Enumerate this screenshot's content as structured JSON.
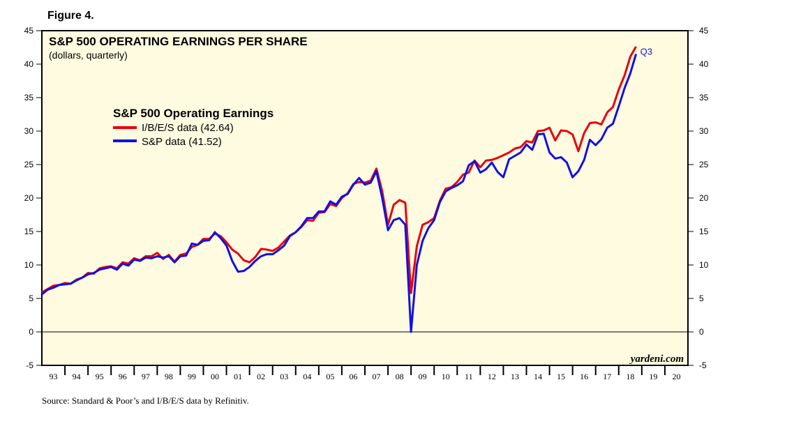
{
  "figure_label": "Figure 4.",
  "source_text": "Source: Standard & Poor’s and I/B/E/S data by Refinitiv.",
  "colors": {
    "plot_bg": "#fefbe0",
    "ibes": "#e8000d",
    "sp": "#1010e6",
    "axis": "#000000"
  },
  "chart_data": {
    "type": "line",
    "title": "S&P 500 OPERATING EARNINGS PER SHARE",
    "subtitle": "(dollars, quarterly)",
    "legend_title": "S&P 500 Operating Earnings",
    "watermark": "yardeni.com",
    "annotation": "Q3",
    "ylim": [
      -5,
      45
    ],
    "y_ticks": [
      -5,
      0,
      5,
      10,
      15,
      20,
      25,
      30,
      35,
      40,
      45
    ],
    "y_tick_labels": [
      "-5",
      "0",
      "5",
      "10",
      "15",
      "20",
      "25",
      "30",
      "35",
      "40",
      "45"
    ],
    "xlim": [
      1993,
      2021
    ],
    "x_tick_labels": [
      "93",
      "94",
      "95",
      "96",
      "97",
      "98",
      "99",
      "00",
      "01",
      "02",
      "03",
      "04",
      "05",
      "06",
      "07",
      "08",
      "09",
      "10",
      "11",
      "12",
      "13",
      "14",
      "15",
      "16",
      "17",
      "18",
      "19",
      "20"
    ],
    "series": [
      {
        "name": "I/B/E/S data (42.64)",
        "color_key": "ibes",
        "points": [
          [
            1993.0,
            5.9
          ],
          [
            1993.25,
            6.4
          ],
          [
            1993.5,
            6.9
          ],
          [
            1993.75,
            7.0
          ],
          [
            1994.0,
            7.3
          ],
          [
            1994.25,
            7.2
          ],
          [
            1994.5,
            7.8
          ],
          [
            1994.75,
            8.1
          ],
          [
            1995.0,
            8.8
          ],
          [
            1995.25,
            8.7
          ],
          [
            1995.5,
            9.5
          ],
          [
            1995.75,
            9.7
          ],
          [
            1996.0,
            9.8
          ],
          [
            1996.25,
            9.5
          ],
          [
            1996.5,
            10.4
          ],
          [
            1996.75,
            10.2
          ],
          [
            1997.0,
            11.0
          ],
          [
            1997.25,
            10.7
          ],
          [
            1997.5,
            11.3
          ],
          [
            1997.75,
            11.3
          ],
          [
            1998.0,
            11.8
          ],
          [
            1998.25,
            10.9
          ],
          [
            1998.5,
            11.5
          ],
          [
            1998.75,
            10.5
          ],
          [
            1999.0,
            11.5
          ],
          [
            1999.25,
            11.7
          ],
          [
            1999.5,
            12.7
          ],
          [
            1999.75,
            13.0
          ],
          [
            2000.0,
            13.9
          ],
          [
            2000.25,
            13.9
          ],
          [
            2000.5,
            14.7
          ],
          [
            2000.75,
            14.3
          ],
          [
            2001.0,
            13.4
          ],
          [
            2001.25,
            12.3
          ],
          [
            2001.5,
            11.7
          ],
          [
            2001.75,
            10.7
          ],
          [
            2002.0,
            10.4
          ],
          [
            2002.25,
            11.2
          ],
          [
            2002.5,
            12.4
          ],
          [
            2002.75,
            12.3
          ],
          [
            2003.0,
            12.1
          ],
          [
            2003.25,
            12.6
          ],
          [
            2003.5,
            13.5
          ],
          [
            2003.75,
            14.4
          ],
          [
            2004.0,
            14.9
          ],
          [
            2004.25,
            15.7
          ],
          [
            2004.5,
            16.7
          ],
          [
            2004.75,
            16.6
          ],
          [
            2005.0,
            17.8
          ],
          [
            2005.25,
            17.9
          ],
          [
            2005.5,
            19.1
          ],
          [
            2005.75,
            18.8
          ],
          [
            2006.0,
            20.0
          ],
          [
            2006.25,
            20.7
          ],
          [
            2006.5,
            22.1
          ],
          [
            2006.75,
            22.4
          ],
          [
            2007.0,
            22.3
          ],
          [
            2007.25,
            22.6
          ],
          [
            2007.5,
            24.4
          ],
          [
            2007.75,
            21.0
          ],
          [
            2008.0,
            16.0
          ],
          [
            2008.25,
            19.0
          ],
          [
            2008.5,
            19.7
          ],
          [
            2008.75,
            19.3
          ],
          [
            2009.0,
            5.8
          ],
          [
            2009.25,
            12.8
          ],
          [
            2009.5,
            16.0
          ],
          [
            2009.75,
            16.4
          ],
          [
            2010.0,
            17.0
          ],
          [
            2010.25,
            19.6
          ],
          [
            2010.5,
            21.4
          ],
          [
            2010.75,
            21.6
          ],
          [
            2011.0,
            22.4
          ],
          [
            2011.25,
            23.5
          ],
          [
            2011.5,
            23.8
          ],
          [
            2011.75,
            25.6
          ],
          [
            2012.0,
            24.6
          ],
          [
            2012.25,
            25.6
          ],
          [
            2012.5,
            25.7
          ],
          [
            2012.75,
            26.0
          ],
          [
            2013.0,
            26.4
          ],
          [
            2013.25,
            26.8
          ],
          [
            2013.5,
            27.4
          ],
          [
            2013.75,
            27.6
          ],
          [
            2014.0,
            28.5
          ],
          [
            2014.25,
            28.3
          ],
          [
            2014.5,
            30.0
          ],
          [
            2014.75,
            30.1
          ],
          [
            2015.0,
            30.5
          ],
          [
            2015.25,
            28.6
          ],
          [
            2015.5,
            30.1
          ],
          [
            2015.75,
            30.0
          ],
          [
            2016.0,
            29.5
          ],
          [
            2016.25,
            27.0
          ],
          [
            2016.5,
            29.7
          ],
          [
            2016.75,
            31.2
          ],
          [
            2017.0,
            31.3
          ],
          [
            2017.25,
            31.0
          ],
          [
            2017.5,
            32.8
          ],
          [
            2017.75,
            33.6
          ],
          [
            2018.0,
            36.2
          ],
          [
            2018.25,
            38.3
          ],
          [
            2018.5,
            41.1
          ],
          [
            2018.75,
            42.64
          ]
        ]
      },
      {
        "name": "S&P data (41.52)",
        "color_key": "sp",
        "points": [
          [
            1993.0,
            5.6
          ],
          [
            1993.25,
            6.3
          ],
          [
            1993.5,
            6.6
          ],
          [
            1993.75,
            7.0
          ],
          [
            1994.0,
            7.1
          ],
          [
            1994.25,
            7.2
          ],
          [
            1994.5,
            7.7
          ],
          [
            1994.75,
            8.1
          ],
          [
            1995.0,
            8.6
          ],
          [
            1995.25,
            8.8
          ],
          [
            1995.5,
            9.3
          ],
          [
            1995.75,
            9.5
          ],
          [
            1996.0,
            9.7
          ],
          [
            1996.25,
            9.3
          ],
          [
            1996.5,
            10.2
          ],
          [
            1996.75,
            9.9
          ],
          [
            1997.0,
            10.8
          ],
          [
            1997.25,
            10.6
          ],
          [
            1997.5,
            11.1
          ],
          [
            1997.75,
            11.0
          ],
          [
            1998.0,
            11.3
          ],
          [
            1998.25,
            11.1
          ],
          [
            1998.5,
            11.3
          ],
          [
            1998.75,
            10.4
          ],
          [
            1999.0,
            11.3
          ],
          [
            1999.25,
            11.4
          ],
          [
            1999.5,
            13.2
          ],
          [
            1999.75,
            13.0
          ],
          [
            2000.0,
            13.6
          ],
          [
            2000.25,
            13.7
          ],
          [
            2000.5,
            14.9
          ],
          [
            2000.75,
            14.0
          ],
          [
            2001.0,
            12.9
          ],
          [
            2001.25,
            10.6
          ],
          [
            2001.5,
            9.0
          ],
          [
            2001.75,
            9.1
          ],
          [
            2002.0,
            9.7
          ],
          [
            2002.25,
            10.6
          ],
          [
            2002.5,
            11.3
          ],
          [
            2002.75,
            11.6
          ],
          [
            2003.0,
            11.6
          ],
          [
            2003.25,
            12.2
          ],
          [
            2003.5,
            12.9
          ],
          [
            2003.75,
            14.3
          ],
          [
            2004.0,
            14.9
          ],
          [
            2004.25,
            15.8
          ],
          [
            2004.5,
            17.0
          ],
          [
            2004.75,
            17.0
          ],
          [
            2005.0,
            18.0
          ],
          [
            2005.25,
            18.0
          ],
          [
            2005.5,
            19.5
          ],
          [
            2005.75,
            19.0
          ],
          [
            2006.0,
            20.2
          ],
          [
            2006.25,
            20.6
          ],
          [
            2006.5,
            22.0
          ],
          [
            2006.75,
            23.0
          ],
          [
            2007.0,
            22.0
          ],
          [
            2007.25,
            22.3
          ],
          [
            2007.5,
            24.0
          ],
          [
            2007.75,
            20.0
          ],
          [
            2008.0,
            15.2
          ],
          [
            2008.25,
            16.7
          ],
          [
            2008.5,
            17.0
          ],
          [
            2008.75,
            16.0
          ],
          [
            2009.0,
            0.0
          ],
          [
            2009.25,
            10.0
          ],
          [
            2009.5,
            13.6
          ],
          [
            2009.75,
            15.5
          ],
          [
            2010.0,
            16.7
          ],
          [
            2010.25,
            19.4
          ],
          [
            2010.5,
            21.0
          ],
          [
            2010.75,
            21.5
          ],
          [
            2011.0,
            21.9
          ],
          [
            2011.25,
            22.5
          ],
          [
            2011.5,
            24.9
          ],
          [
            2011.75,
            25.5
          ],
          [
            2012.0,
            23.8
          ],
          [
            2012.25,
            24.3
          ],
          [
            2012.5,
            25.3
          ],
          [
            2012.75,
            23.9
          ],
          [
            2013.0,
            23.1
          ],
          [
            2013.25,
            25.8
          ],
          [
            2013.5,
            26.3
          ],
          [
            2013.75,
            26.8
          ],
          [
            2014.0,
            28.0
          ],
          [
            2014.25,
            27.2
          ],
          [
            2014.5,
            29.5
          ],
          [
            2014.75,
            29.6
          ],
          [
            2015.0,
            26.8
          ],
          [
            2015.25,
            25.9
          ],
          [
            2015.5,
            26.1
          ],
          [
            2015.75,
            25.3
          ],
          [
            2016.0,
            23.1
          ],
          [
            2016.25,
            24.0
          ],
          [
            2016.5,
            25.7
          ],
          [
            2016.75,
            28.7
          ],
          [
            2017.0,
            27.9
          ],
          [
            2017.25,
            28.8
          ],
          [
            2017.5,
            30.5
          ],
          [
            2017.75,
            31.1
          ],
          [
            2018.0,
            33.7
          ],
          [
            2018.25,
            36.4
          ],
          [
            2018.5,
            38.6
          ],
          [
            2018.75,
            41.52
          ]
        ]
      }
    ]
  }
}
